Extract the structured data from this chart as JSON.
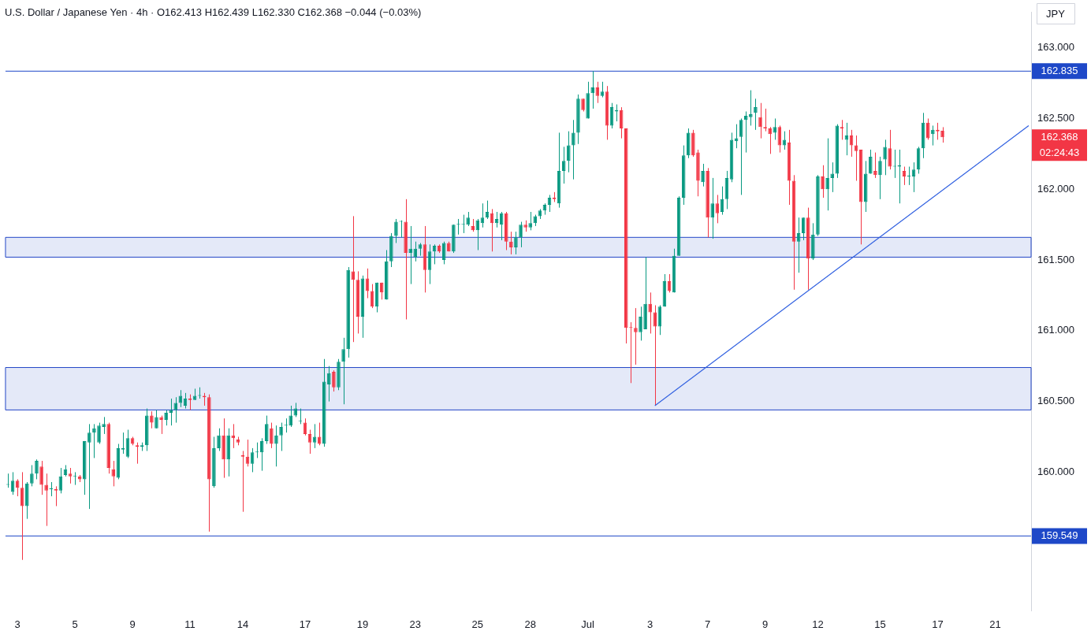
{
  "chart_data": {
    "type": "candlestick",
    "title": "U.S. Dollar / Japanese Yen · 4h · O162.413 H162.439 L162.330 C162.368 −0.044 (−0.03%)",
    "categories": [
      null,
      null,
      "3",
      null,
      null,
      null,
      null,
      null,
      null,
      null,
      null,
      null,
      null,
      null,
      "5",
      null,
      null,
      null,
      null,
      null,
      null,
      null,
      null,
      null,
      null,
      null,
      "9",
      null,
      null,
      null,
      null,
      null,
      null,
      null,
      null,
      null,
      null,
      null,
      "11",
      null,
      null,
      null,
      null,
      null,
      null,
      null,
      null,
      null,
      null,
      "14",
      null,
      null,
      null,
      null,
      null,
      null,
      null,
      null,
      null,
      null,
      null,
      null,
      "17",
      null,
      null,
      null,
      null,
      null,
      null,
      null,
      null,
      null,
      null,
      null,
      "19",
      null,
      null,
      null,
      null,
      null,
      null,
      null,
      null,
      null,
      null,
      "23",
      null,
      null,
      null,
      null,
      null,
      null,
      null,
      null,
      null,
      null,
      null,
      null,
      "25",
      null,
      null,
      null,
      null,
      null,
      null,
      null,
      null,
      null,
      null,
      "28",
      null,
      null,
      null,
      null,
      null,
      null,
      null,
      null,
      null,
      null,
      null,
      "Jul",
      null,
      null,
      null,
      null,
      null,
      null,
      null,
      null,
      null,
      null,
      null,
      null,
      "3",
      null,
      null,
      null,
      null,
      null,
      null,
      null,
      null,
      null,
      null,
      null,
      "7",
      null,
      null,
      null,
      null,
      null,
      null,
      null,
      null,
      null,
      null,
      null,
      "9",
      null,
      null,
      null,
      null,
      null,
      null,
      null,
      null,
      null,
      null,
      "12",
      null,
      null,
      null,
      null,
      null,
      null,
      null,
      null,
      null,
      null,
      null,
      null,
      "15",
      null,
      null,
      null,
      null,
      null,
      null,
      null,
      null,
      null,
      null,
      null,
      "17",
      null,
      null,
      null,
      null,
      null,
      null,
      null,
      null,
      null,
      null,
      null,
      "21",
      null,
      null,
      null,
      null,
      null,
      null,
      null
    ],
    "ohlc": [
      [
        159.91,
        159.99,
        159.89,
        159.91
      ],
      [
        159.86,
        160.0,
        159.84,
        159.94
      ],
      [
        159.94,
        159.95,
        159.83,
        159.89
      ],
      [
        159.89,
        160.0,
        159.38,
        159.76
      ],
      [
        159.76,
        159.93,
        159.67,
        159.92
      ],
      [
        159.92,
        160.05,
        159.9,
        159.99
      ],
      [
        159.99,
        160.09,
        159.95,
        160.08
      ],
      [
        160.04,
        160.08,
        159.84,
        159.91
      ],
      [
        159.91,
        159.99,
        159.62,
        159.87
      ],
      [
        159.88,
        159.93,
        159.83,
        159.88
      ],
      [
        159.88,
        159.9,
        159.76,
        159.87
      ],
      [
        159.87,
        160.03,
        159.85,
        159.97
      ],
      [
        159.98,
        160.05,
        159.97,
        160.02
      ],
      [
        159.99,
        160.03,
        159.92,
        159.97
      ],
      [
        159.97,
        160.0,
        159.91,
        159.97
      ],
      [
        159.97,
        159.98,
        159.93,
        159.95
      ],
      [
        159.95,
        160.22,
        159.84,
        160.22
      ],
      [
        160.21,
        160.34,
        159.74,
        160.28
      ],
      [
        160.28,
        160.34,
        160.1,
        160.31
      ],
      [
        160.21,
        160.35,
        160.2,
        160.33
      ],
      [
        160.32,
        160.39,
        160.27,
        160.34
      ],
      [
        160.34,
        160.35,
        159.99,
        160.03
      ],
      [
        160.02,
        160.08,
        159.9,
        159.97
      ],
      [
        159.96,
        160.2,
        159.95,
        160.17
      ],
      [
        160.16,
        160.28,
        160.13,
        160.17
      ],
      [
        160.11,
        160.3,
        160.1,
        160.24
      ],
      [
        160.24,
        160.25,
        160.19,
        160.2
      ],
      [
        160.19,
        160.21,
        160.06,
        160.18
      ],
      [
        160.18,
        160.21,
        160.15,
        160.19
      ],
      [
        160.19,
        160.45,
        160.15,
        160.4
      ],
      [
        160.4,
        160.43,
        160.31,
        160.35
      ],
      [
        160.31,
        160.44,
        160.31,
        160.39
      ],
      [
        160.39,
        160.4,
        160.27,
        160.37
      ],
      [
        160.37,
        160.44,
        160.33,
        160.42
      ],
      [
        160.42,
        160.52,
        160.33,
        160.44
      ],
      [
        160.44,
        160.53,
        160.35,
        160.49
      ],
      [
        160.49,
        160.58,
        160.46,
        160.54
      ],
      [
        160.47,
        160.56,
        160.45,
        160.52
      ],
      [
        160.52,
        160.55,
        160.44,
        160.51
      ],
      [
        160.51,
        160.59,
        160.51,
        160.54
      ],
      [
        160.54,
        160.6,
        160.52,
        160.54
      ],
      [
        160.54,
        160.56,
        160.47,
        160.53
      ],
      [
        160.53,
        160.55,
        159.58,
        159.95
      ],
      [
        159.9,
        160.25,
        159.89,
        160.17
      ],
      [
        160.17,
        160.31,
        160.15,
        160.26
      ],
      [
        160.26,
        160.38,
        159.96,
        160.09
      ],
      [
        160.09,
        160.31,
        159.97,
        160.26
      ],
      [
        160.26,
        160.34,
        160.17,
        160.24
      ],
      [
        160.23,
        160.25,
        160.19,
        160.21
      ],
      [
        160.12,
        160.15,
        159.72,
        160.11
      ],
      [
        160.11,
        160.23,
        160.04,
        160.06
      ],
      [
        160.06,
        160.17,
        160.0,
        160.14
      ],
      [
        160.14,
        160.21,
        160.1,
        160.14
      ],
      [
        160.14,
        160.24,
        160.01,
        160.22
      ],
      [
        160.22,
        160.4,
        160.2,
        160.34
      ],
      [
        160.31,
        160.35,
        160.17,
        160.2
      ],
      [
        160.2,
        160.33,
        160.04,
        160.26
      ],
      [
        160.26,
        160.35,
        160.15,
        160.32
      ],
      [
        160.33,
        160.38,
        160.28,
        160.33
      ],
      [
        160.33,
        160.47,
        160.32,
        160.4
      ],
      [
        160.4,
        160.49,
        160.39,
        160.45
      ],
      [
        160.36,
        160.45,
        160.34,
        160.36
      ],
      [
        160.35,
        160.38,
        160.26,
        160.27
      ],
      [
        160.27,
        160.3,
        160.13,
        160.21
      ],
      [
        160.21,
        160.34,
        160.17,
        160.25
      ],
      [
        160.25,
        160.35,
        160.19,
        160.2
      ],
      [
        160.2,
        160.8,
        160.18,
        160.64
      ],
      [
        160.62,
        160.75,
        160.5,
        160.7
      ],
      [
        160.71,
        160.72,
        160.57,
        160.6
      ],
      [
        160.6,
        160.8,
        160.58,
        160.78
      ],
      [
        160.78,
        160.95,
        160.48,
        160.87
      ],
      [
        160.87,
        161.45,
        160.81,
        161.43
      ],
      [
        161.42,
        161.81,
        160.92,
        161.36
      ],
      [
        161.36,
        161.42,
        160.98,
        161.1
      ],
      [
        161.1,
        161.39,
        160.95,
        161.37
      ],
      [
        161.37,
        161.44,
        161.23,
        161.28
      ],
      [
        161.28,
        161.33,
        161.16,
        161.17
      ],
      [
        161.17,
        161.34,
        161.13,
        161.34
      ],
      [
        161.34,
        161.34,
        161.22,
        161.27
      ],
      [
        161.22,
        161.57,
        161.22,
        161.49
      ],
      [
        161.49,
        161.69,
        161.45,
        161.67
      ],
      [
        161.67,
        161.79,
        161.62,
        161.77
      ],
      [
        161.77,
        161.78,
        161.66,
        161.77
      ],
      [
        161.77,
        161.93,
        161.08,
        161.55
      ],
      [
        161.55,
        161.74,
        161.33,
        161.58
      ],
      [
        161.52,
        161.63,
        161.49,
        161.58
      ],
      [
        161.58,
        161.62,
        161.53,
        161.61
      ],
      [
        161.61,
        161.74,
        161.27,
        161.43
      ],
      [
        161.43,
        161.61,
        161.33,
        161.56
      ],
      [
        161.56,
        161.61,
        161.47,
        161.6
      ],
      [
        161.6,
        161.61,
        161.55,
        161.56
      ],
      [
        161.5,
        161.63,
        161.47,
        161.62
      ],
      [
        161.62,
        161.63,
        161.56,
        161.56
      ],
      [
        161.56,
        161.75,
        161.55,
        161.75
      ],
      [
        161.75,
        161.79,
        161.68,
        161.75
      ],
      [
        161.75,
        161.82,
        161.69,
        161.75
      ],
      [
        161.75,
        161.84,
        161.74,
        161.8
      ],
      [
        161.74,
        161.79,
        161.7,
        161.71
      ],
      [
        161.71,
        161.79,
        161.57,
        161.78
      ],
      [
        161.76,
        161.9,
        161.73,
        161.8
      ],
      [
        161.8,
        161.92,
        161.79,
        161.84
      ],
      [
        161.83,
        161.86,
        161.56,
        161.76
      ],
      [
        161.76,
        161.84,
        161.73,
        161.79
      ],
      [
        161.75,
        161.84,
        161.64,
        161.83
      ],
      [
        161.83,
        161.84,
        161.57,
        161.63
      ],
      [
        161.63,
        161.7,
        161.54,
        161.59
      ],
      [
        161.59,
        161.7,
        161.54,
        161.66
      ],
      [
        161.66,
        161.77,
        161.59,
        161.75
      ],
      [
        161.75,
        161.78,
        161.7,
        161.73
      ],
      [
        161.73,
        161.84,
        161.71,
        161.76
      ],
      [
        161.76,
        161.82,
        161.74,
        161.81
      ],
      [
        161.81,
        161.86,
        161.79,
        161.85
      ],
      [
        161.85,
        161.9,
        161.82,
        161.89
      ],
      [
        161.89,
        161.96,
        161.84,
        161.94
      ],
      [
        161.94,
        161.98,
        161.91,
        161.93
      ],
      [
        161.9,
        162.4,
        161.87,
        162.13
      ],
      [
        162.13,
        162.3,
        162.04,
        162.2
      ],
      [
        162.2,
        162.41,
        162.12,
        162.31
      ],
      [
        162.31,
        162.49,
        162.07,
        162.4
      ],
      [
        162.4,
        162.67,
        162.32,
        162.64
      ],
      [
        162.64,
        162.64,
        162.55,
        162.56
      ],
      [
        162.5,
        162.76,
        162.5,
        162.68
      ],
      [
        162.68,
        162.835,
        162.57,
        162.72
      ],
      [
        162.72,
        162.76,
        162.61,
        162.66
      ],
      [
        162.66,
        162.76,
        162.65,
        162.69
      ],
      [
        162.69,
        162.73,
        162.35,
        162.45
      ],
      [
        162.45,
        162.61,
        162.43,
        162.58
      ],
      [
        162.55,
        162.6,
        162.48,
        162.56
      ],
      [
        162.56,
        162.58,
        162.36,
        162.43
      ],
      [
        162.43,
        162.43,
        160.91,
        161.02
      ],
      [
        161.02,
        161.06,
        160.63,
        161.02
      ],
      [
        161.02,
        161.16,
        160.76,
        160.99
      ],
      [
        160.99,
        161.17,
        160.93,
        161.1
      ],
      [
        161.01,
        161.52,
        161.01,
        161.19
      ],
      [
        161.19,
        161.27,
        160.98,
        161.13
      ],
      [
        161.13,
        161.18,
        160.47,
        161.03
      ],
      [
        161.03,
        161.18,
        160.97,
        161.17
      ],
      [
        161.17,
        161.4,
        161.17,
        161.35
      ],
      [
        161.35,
        161.4,
        161.27,
        161.28
      ],
      [
        161.27,
        161.58,
        161.27,
        161.53
      ],
      [
        161.53,
        161.95,
        161.53,
        161.94
      ],
      [
        161.94,
        162.31,
        161.89,
        162.24
      ],
      [
        162.24,
        162.43,
        162.22,
        162.4
      ],
      [
        162.4,
        162.42,
        162.23,
        162.24
      ],
      [
        162.26,
        162.28,
        161.95,
        162.06
      ],
      [
        162.05,
        162.18,
        162.02,
        162.13
      ],
      [
        162.13,
        162.15,
        161.66,
        161.8
      ],
      [
        161.8,
        162.08,
        161.65,
        161.9
      ],
      [
        161.9,
        161.96,
        161.76,
        161.83
      ],
      [
        161.84,
        162.02,
        161.82,
        161.93
      ],
      [
        161.93,
        162.13,
        161.86,
        162.08
      ],
      [
        162.07,
        162.4,
        162.05,
        162.35
      ],
      [
        162.34,
        162.46,
        162.29,
        162.36
      ],
      [
        162.37,
        162.5,
        161.96,
        162.49
      ],
      [
        162.49,
        162.55,
        162.26,
        162.52
      ],
      [
        162.51,
        162.7,
        162.45,
        162.53
      ],
      [
        162.54,
        162.64,
        162.42,
        162.58
      ],
      [
        162.51,
        162.61,
        162.36,
        162.44
      ],
      [
        162.44,
        162.57,
        162.41,
        162.43
      ],
      [
        162.43,
        162.44,
        162.25,
        162.39
      ],
      [
        162.4,
        162.5,
        162.35,
        162.44
      ],
      [
        162.44,
        162.45,
        162.26,
        162.31
      ],
      [
        162.31,
        162.41,
        162.28,
        162.35
      ],
      [
        162.33,
        162.42,
        161.89,
        162.06
      ],
      [
        162.06,
        162.1,
        161.29,
        161.63
      ],
      [
        161.63,
        161.8,
        161.41,
        161.69
      ],
      [
        161.69,
        161.8,
        161.64,
        161.8
      ],
      [
        161.8,
        161.87,
        161.29,
        161.51
      ],
      [
        161.51,
        161.76,
        161.5,
        161.68
      ],
      [
        161.68,
        162.1,
        161.67,
        162.09
      ],
      [
        162.09,
        162.17,
        161.94,
        162.0
      ],
      [
        162.0,
        162.36,
        161.85,
        162.08
      ],
      [
        162.08,
        162.19,
        161.98,
        162.11
      ],
      [
        162.11,
        162.46,
        162.08,
        162.45
      ],
      [
        162.44,
        162.49,
        162.35,
        162.43
      ],
      [
        162.35,
        162.47,
        162.24,
        162.38
      ],
      [
        162.38,
        162.42,
        162.23,
        162.31
      ],
      [
        162.31,
        162.38,
        162.06,
        162.27
      ],
      [
        162.28,
        162.28,
        161.61,
        161.91
      ],
      [
        161.91,
        162.2,
        161.84,
        162.11
      ],
      [
        162.11,
        162.28,
        162.11,
        162.23
      ],
      [
        162.13,
        162.26,
        162.08,
        162.1
      ],
      [
        162.1,
        162.23,
        161.93,
        162.2
      ],
      [
        162.21,
        162.35,
        162.1,
        162.3
      ],
      [
        162.29,
        162.42,
        162.14,
        162.16
      ],
      [
        162.16,
        162.28,
        162.08,
        162.16
      ],
      [
        162.16,
        162.28,
        161.9,
        162.17
      ],
      [
        162.13,
        162.16,
        162.03,
        162.09
      ],
      [
        162.09,
        162.16,
        162.03,
        162.09
      ],
      [
        162.09,
        162.19,
        161.98,
        162.14
      ],
      [
        162.14,
        162.3,
        162.11,
        162.29
      ],
      [
        162.29,
        162.54,
        162.22,
        162.47
      ],
      [
        162.47,
        162.5,
        162.35,
        162.36
      ],
      [
        162.39,
        162.45,
        162.31,
        162.42
      ],
      [
        162.42,
        162.47,
        162.35,
        162.41
      ],
      [
        162.413,
        162.439,
        162.33,
        162.368
      ],
      null,
      null,
      null,
      null,
      null,
      null,
      null,
      null,
      null,
      null,
      null,
      null,
      null,
      null,
      null,
      null,
      null,
      null
    ],
    "colors": [
      "#089981",
      "#089981",
      "#f23645",
      "#f23645",
      "#089981",
      "#089981",
      "#089981",
      "#f23645",
      "#f23645",
      "#089981",
      "#f23645",
      "#089981",
      "#089981",
      "#f23645",
      "#089981",
      "#f23645",
      "#089981",
      "#089981",
      "#089981",
      "#089981",
      "#089981",
      "#f23645",
      "#f23645",
      "#089981",
      "#089981",
      "#089981",
      "#f23645",
      "#f23645",
      "#089981",
      "#089981",
      "#f23645",
      "#089981",
      "#f23645",
      "#089981",
      "#089981",
      "#089981",
      "#089981",
      "#089981",
      "#f23645",
      "#089981",
      "#089981",
      "#f23645",
      "#f23645",
      "#089981",
      "#089981",
      "#f23645",
      "#089981",
      "#f23645",
      "#f23645",
      "#f23645",
      "#f23645",
      "#089981",
      "#089981",
      "#089981",
      "#089981",
      "#f23645",
      "#089981",
      "#089981",
      "#089981",
      "#089981",
      "#089981",
      "#089981",
      "#f23645",
      "#f23645",
      "#089981",
      "#f23645",
      "#089981",
      "#089981",
      "#f23645",
      "#089981",
      "#089981",
      "#089981",
      "#f23645",
      "#f23645",
      "#089981",
      "#f23645",
      "#f23645",
      "#089981",
      "#f23645",
      "#089981",
      "#089981",
      "#089981",
      "#089981",
      "#f23645",
      "#089981",
      "#089981",
      "#089981",
      "#f23645",
      "#089981",
      "#089981",
      "#f23645",
      "#089981",
      "#f23645",
      "#089981",
      "#089981",
      "#089981",
      "#089981",
      "#f23645",
      "#089981",
      "#089981",
      "#089981",
      "#f23645",
      "#089981",
      "#089981",
      "#f23645",
      "#f23645",
      "#089981",
      "#089981",
      "#f23645",
      "#089981",
      "#089981",
      "#089981",
      "#089981",
      "#089981",
      "#f23645",
      "#089981",
      "#089981",
      "#089981",
      "#089981",
      "#089981",
      "#f23645",
      "#089981",
      "#089981",
      "#f23645",
      "#089981",
      "#f23645",
      "#089981",
      "#089981",
      "#f23645",
      "#f23645",
      "#f23645",
      "#f23645",
      "#089981",
      "#089981",
      "#f23645",
      "#f23645",
      "#089981",
      "#089981",
      "#f23645",
      "#089981",
      "#089981",
      "#089981",
      "#089981",
      "#f23645",
      "#f23645",
      "#089981",
      "#f23645",
      "#089981",
      "#f23645",
      "#089981",
      "#089981",
      "#089981",
      "#089981",
      "#089981",
      "#089981",
      "#089981",
      "#089981",
      "#f23645",
      "#f23645",
      "#f23645",
      "#089981",
      "#f23645",
      "#089981",
      "#f23645",
      "#f23645",
      "#089981",
      "#089981",
      "#f23645",
      "#089981",
      "#089981",
      "#f23645",
      "#089981",
      "#089981",
      "#089981",
      "#f23645",
      "#089981",
      "#f23645",
      "#f23645",
      "#f23645",
      "#089981",
      "#089981",
      "#f23645",
      "#089981",
      "#089981",
      "#f23645",
      "#089981",
      "#089981",
      "#f23645",
      "#089981",
      "#089981",
      "#089981",
      "#089981",
      "#f23645",
      "#089981",
      "#f23645",
      "#f23645",
      null,
      null,
      null,
      null,
      null,
      null,
      null,
      null,
      null,
      null,
      null,
      null,
      null,
      null,
      null,
      null,
      null,
      null
    ],
    "series": [
      {
        "type": "line",
        "color": "#2f5fe0",
        "values": [
          null,
          null,
          null,
          null,
          null,
          null,
          null,
          null,
          null,
          null,
          null,
          null,
          null,
          null,
          null,
          null,
          null,
          null,
          null,
          null,
          null,
          null,
          null,
          null,
          null,
          null,
          null,
          null,
          null,
          null,
          null,
          null,
          null,
          null,
          null,
          null,
          null,
          null,
          null,
          null,
          null,
          null,
          null,
          null,
          null,
          null,
          null,
          null,
          null,
          null,
          null,
          null,
          null,
          null,
          null,
          null,
          null,
          null,
          null,
          null,
          null,
          null,
          null,
          null,
          null,
          null,
          null,
          null,
          null,
          null,
          null,
          null,
          null,
          null,
          null,
          null,
          null,
          null,
          null,
          null,
          null,
          null,
          null,
          null,
          null,
          null,
          null,
          null,
          null,
          null,
          null,
          null,
          null,
          null,
          null,
          null,
          null,
          null,
          null,
          null,
          null,
          null,
          null,
          null,
          null,
          null,
          null,
          null,
          null,
          null,
          null,
          null,
          null,
          null,
          null,
          null,
          null,
          null,
          null,
          null,
          null,
          null,
          null,
          null,
          null,
          null,
          null,
          null,
          null,
          null,
          null,
          null,
          null,
          null,
          null,
          160.47,
          null,
          null,
          null,
          null,
          null,
          null,
          null,
          null,
          null,
          null,
          null,
          null,
          null,
          null,
          null,
          null,
          null,
          null,
          null,
          null,
          null,
          null,
          null,
          null,
          null,
          null,
          null,
          null,
          null,
          null,
          null,
          null,
          null,
          null,
          null,
          null,
          null,
          null,
          null,
          null,
          null,
          null,
          null,
          null,
          null,
          null,
          null,
          null,
          null,
          null,
          null,
          null,
          null,
          null,
          null,
          null,
          null,
          null,
          null,
          null,
          null,
          null,
          null,
          null,
          null,
          null,
          null,
          null,
          null,
          null,
          null,
          null,
          null,
          null,
          null,
          null,
          null,
          162.45
        ]
      }
    ],
    "ylim": [
      159.02,
      163.25
    ],
    "yticks": [
      {
        "value": 160,
        "label": "160.000"
      },
      {
        "value": 160.5,
        "label": "160.500"
      },
      {
        "value": 161,
        "label": "161.000"
      },
      {
        "value": 161.5,
        "label": "161.500"
      },
      {
        "value": 162,
        "label": "162.000"
      },
      {
        "value": 162.5,
        "label": "162.500"
      },
      {
        "value": 163,
        "label": "163.000"
      }
    ],
    "ref_lines": [
      {
        "axis": "y",
        "value": 162.835,
        "label": "162.835",
        "color": "#1e48c8"
      },
      {
        "axis": "y",
        "value": 159.549,
        "label": "159.549",
        "color": "#1e48c8"
      }
    ],
    "bands": [
      {
        "axis": "y",
        "from": 160.44,
        "to": 160.74,
        "color": "#2346c7"
      },
      {
        "axis": "y",
        "from": 161.52,
        "to": 161.66,
        "color": "#2346c7"
      }
    ],
    "annotations": [
      "JPY",
      "162.368",
      "02:24:43"
    ]
  }
}
